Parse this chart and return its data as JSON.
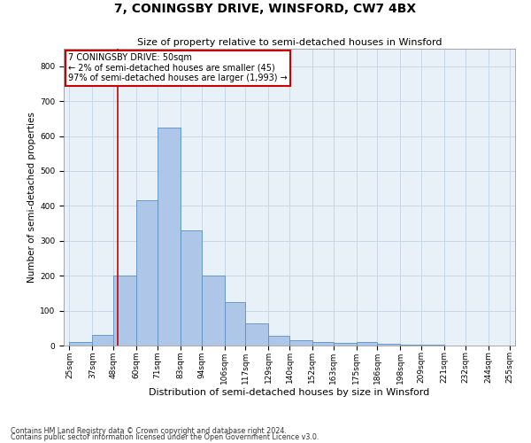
{
  "title": "7, CONINGSBY DRIVE, WINSFORD, CW7 4BX",
  "subtitle": "Size of property relative to semi-detached houses in Winsford",
  "xlabel": "Distribution of semi-detached houses by size in Winsford",
  "ylabel": "Number of semi-detached properties",
  "footnote1": "Contains HM Land Registry data © Crown copyright and database right 2024.",
  "footnote2": "Contains public sector information licensed under the Open Government Licence v3.0.",
  "annotation_line1": "7 CONINGSBY DRIVE: 50sqm",
  "annotation_line2": "← 2% of semi-detached houses are smaller (45)",
  "annotation_line3": "97% of semi-detached houses are larger (1,993) →",
  "property_size": 50,
  "bar_edges": [
    25,
    37,
    48,
    60,
    71,
    83,
    94,
    106,
    117,
    129,
    140,
    152,
    163,
    175,
    186,
    198,
    209,
    221,
    232,
    244,
    255
  ],
  "bar_labels": [
    "25sqm",
    "37sqm",
    "48sqm",
    "60sqm",
    "71sqm",
    "83sqm",
    "94sqm",
    "106sqm",
    "117sqm",
    "129sqm",
    "140sqm",
    "152sqm",
    "163sqm",
    "175sqm",
    "186sqm",
    "198sqm",
    "209sqm",
    "221sqm",
    "232sqm",
    "244sqm",
    "255sqm"
  ],
  "bar_heights": [
    10,
    30,
    200,
    415,
    625,
    330,
    200,
    125,
    63,
    28,
    15,
    10,
    8,
    10,
    5,
    3,
    2,
    1,
    1,
    1,
    0
  ],
  "bar_color": "#aec6e8",
  "bar_edge_color": "#5a8fc0",
  "vline_color": "#cc0000",
  "vline_x": 50,
  "ylim": [
    0,
    850
  ],
  "yticks": [
    0,
    100,
    200,
    300,
    400,
    500,
    600,
    700,
    800
  ],
  "grid_color": "#c8d8e8",
  "annotation_box_color": "#cc0000",
  "bg_color": "#e8f0f8",
  "title_fontsize": 10,
  "subtitle_fontsize": 8,
  "xlabel_fontsize": 8,
  "ylabel_fontsize": 7.5,
  "tick_fontsize": 6.5,
  "annot_fontsize": 7
}
